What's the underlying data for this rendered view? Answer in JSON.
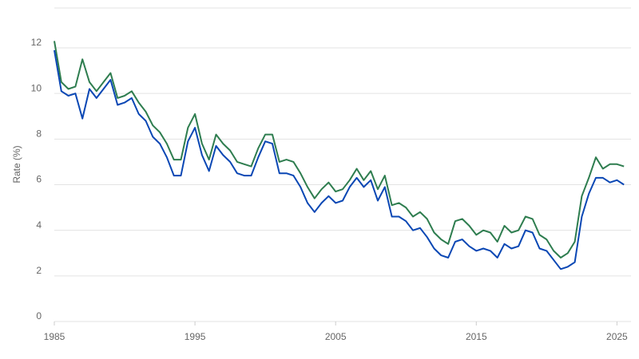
{
  "chart_data": {
    "type": "line",
    "y_label": "Rate (%)",
    "x": [
      1985.0,
      1985.5,
      1986.0,
      1986.5,
      1987.0,
      1987.5,
      1988.0,
      1988.5,
      1989.0,
      1989.5,
      1990.0,
      1990.5,
      1991.0,
      1991.5,
      1992.0,
      1992.5,
      1993.0,
      1993.5,
      1994.0,
      1994.5,
      1995.0,
      1995.5,
      1996.0,
      1996.5,
      1997.0,
      1997.5,
      1998.0,
      1998.5,
      1999.0,
      1999.5,
      2000.0,
      2000.5,
      2001.0,
      2001.5,
      2002.0,
      2002.5,
      2003.0,
      2003.5,
      2004.0,
      2004.5,
      2005.0,
      2005.5,
      2006.0,
      2006.5,
      2007.0,
      2007.5,
      2008.0,
      2008.5,
      2009.0,
      2009.5,
      2010.0,
      2010.5,
      2011.0,
      2011.5,
      2012.0,
      2012.5,
      2013.0,
      2013.5,
      2014.0,
      2014.5,
      2015.0,
      2015.5,
      2016.0,
      2016.5,
      2017.0,
      2017.5,
      2018.0,
      2018.5,
      2019.0,
      2019.5,
      2020.0,
      2020.5,
      2021.0,
      2021.5,
      2022.0,
      2022.5,
      2023.0,
      2023.5,
      2024.0,
      2024.5,
      2025.0,
      2025.5
    ],
    "series": [
      {
        "color": "#2e7d4f",
        "values": [
          12.3,
          10.5,
          10.2,
          10.3,
          11.5,
          10.5,
          10.1,
          10.5,
          10.9,
          9.8,
          9.9,
          10.1,
          9.6,
          9.2,
          8.6,
          8.3,
          7.8,
          7.1,
          7.1,
          8.5,
          9.1,
          7.8,
          7.1,
          8.2,
          7.8,
          7.5,
          7.0,
          6.9,
          6.8,
          7.6,
          8.2,
          8.2,
          7.0,
          7.1,
          7.0,
          6.5,
          5.9,
          5.4,
          5.8,
          6.1,
          5.7,
          5.8,
          6.2,
          6.7,
          6.2,
          6.6,
          5.8,
          6.4,
          5.1,
          5.2,
          5.0,
          4.6,
          4.8,
          4.5,
          3.9,
          3.6,
          3.4,
          4.4,
          4.5,
          4.2,
          3.8,
          4.0,
          3.9,
          3.5,
          4.2,
          3.9,
          4.0,
          4.6,
          4.5,
          3.8,
          3.6,
          3.1,
          2.8,
          3.0,
          3.5,
          5.5,
          6.3,
          7.2,
          6.7,
          6.9,
          6.9,
          6.8
        ]
      },
      {
        "color": "#0a47b4",
        "values": [
          11.9,
          10.1,
          9.9,
          10.0,
          8.9,
          10.2,
          9.8,
          10.2,
          10.6,
          9.5,
          9.6,
          9.8,
          9.1,
          8.8,
          8.1,
          7.8,
          7.2,
          6.4,
          6.4,
          7.9,
          8.5,
          7.3,
          6.6,
          7.7,
          7.3,
          7.0,
          6.5,
          6.4,
          6.4,
          7.2,
          7.9,
          7.8,
          6.5,
          6.5,
          6.4,
          5.9,
          5.2,
          4.8,
          5.2,
          5.5,
          5.2,
          5.3,
          5.9,
          6.3,
          5.9,
          6.2,
          5.3,
          5.9,
          4.6,
          4.6,
          4.4,
          4.0,
          4.1,
          3.7,
          3.2,
          2.9,
          2.8,
          3.5,
          3.6,
          3.3,
          3.1,
          3.2,
          3.1,
          2.8,
          3.4,
          3.2,
          3.3,
          4.0,
          3.9,
          3.2,
          3.1,
          2.7,
          2.3,
          2.4,
          2.6,
          4.6,
          5.6,
          6.3,
          6.3,
          6.1,
          6.2,
          6.0
        ]
      }
    ],
    "xlim": [
      1985,
      2026
    ],
    "xticks": [
      1985,
      1995,
      2005,
      2015,
      2025
    ],
    "ylim": [
      0,
      13.75
    ],
    "yticks": [
      0,
      2,
      4,
      6,
      8,
      10,
      12
    ],
    "grid": true
  }
}
